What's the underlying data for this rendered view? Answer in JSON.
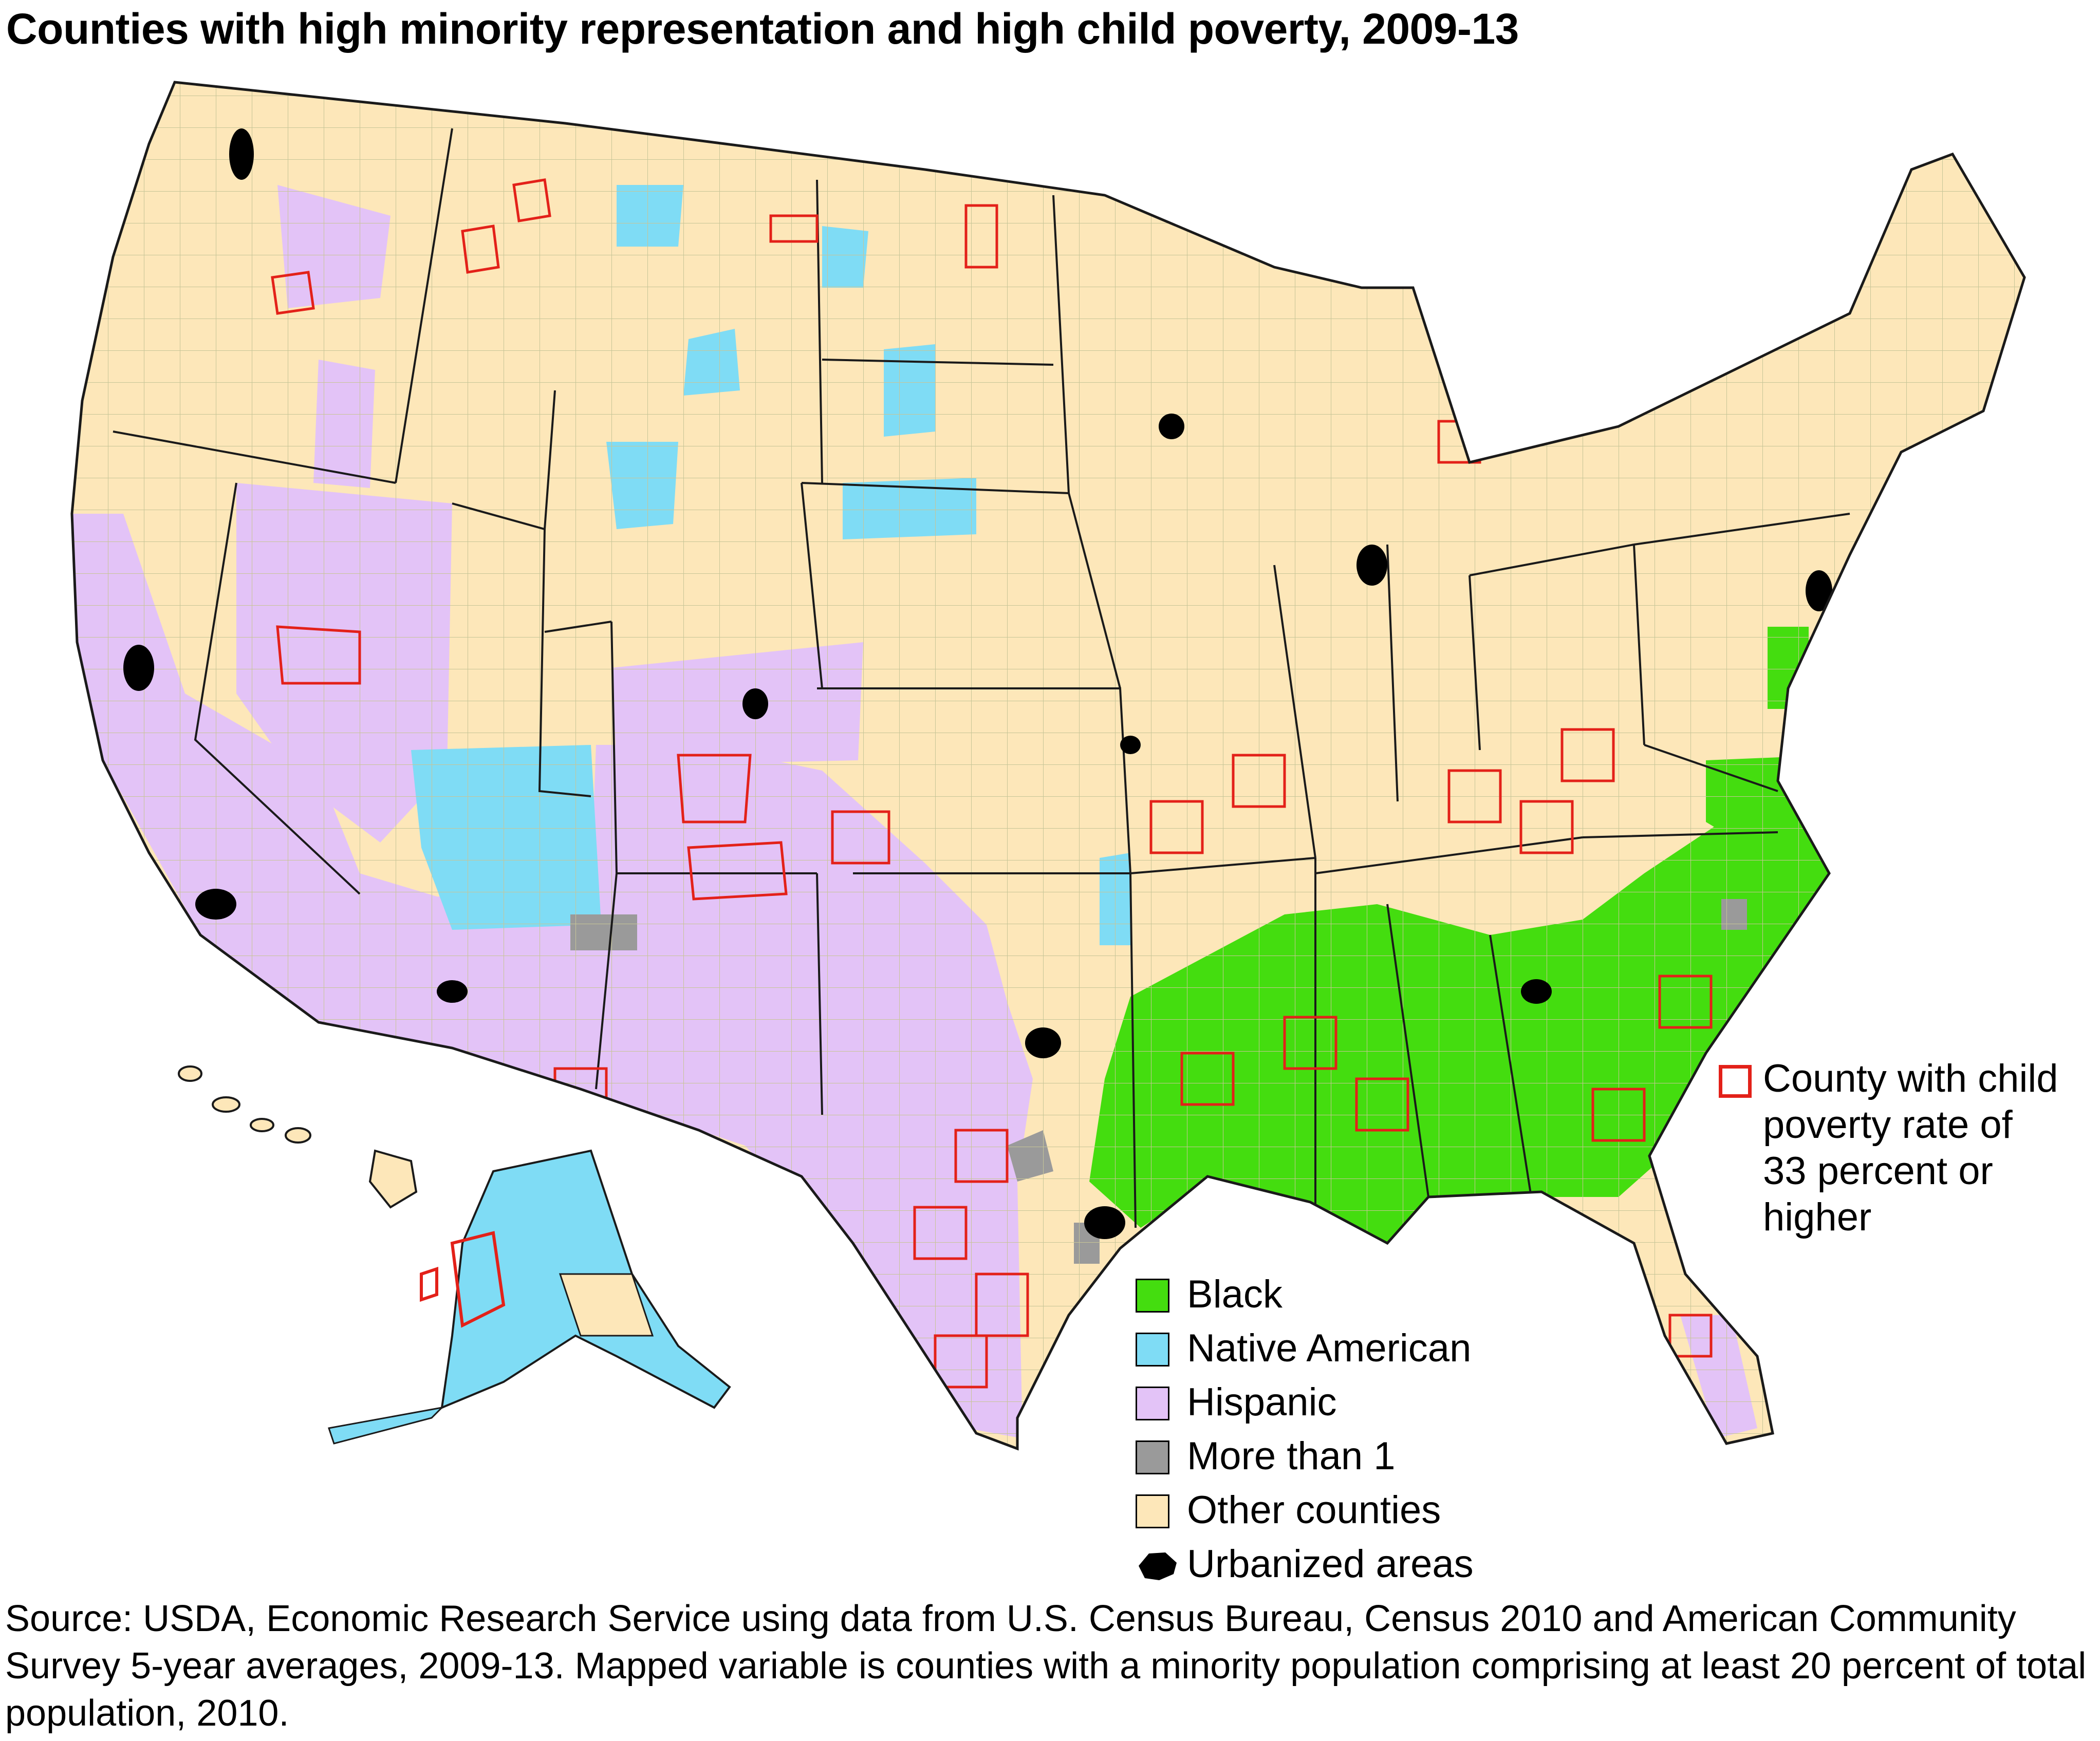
{
  "title": "Counties with high minority representation and high child poverty, 2009-13",
  "colors": {
    "black": "#44dd0f",
    "native_american": "#7fdcf5",
    "hispanic": "#e3c3f7",
    "more_than_1": "#9a9a9a",
    "other_counties": "#fde7b9",
    "urbanized": "#000000",
    "poverty_outline": "#e32119",
    "county_line": "#c7c597",
    "state_line": "#1a1a1a"
  },
  "legend": {
    "items": [
      {
        "label": "Black",
        "color_key": "black",
        "icon": "swatch-icon"
      },
      {
        "label": "Native American",
        "color_key": "native_american",
        "icon": "swatch-icon"
      },
      {
        "label": "Hispanic",
        "color_key": "hispanic",
        "icon": "swatch-icon"
      },
      {
        "label": "More than 1",
        "color_key": "more_than_1",
        "icon": "swatch-icon"
      },
      {
        "label": "Other counties",
        "color_key": "other_counties",
        "icon": "swatch-icon"
      },
      {
        "label": "Urbanized areas",
        "color_key": "urbanized",
        "icon": "urban-blob-icon"
      }
    ]
  },
  "poverty_key": {
    "lines": [
      "County with child",
      "poverty rate of",
      "33 percent or",
      "higher"
    ],
    "icon": "red-outline-square-icon"
  },
  "source": "Source: USDA, Economic Research Service using data from U.S. Census Bureau, Census 2010 and American Community Survey 5-year averages, 2009-13. Mapped variable is counties with a minority population comprising at least 20 percent of total population, 2010."
}
